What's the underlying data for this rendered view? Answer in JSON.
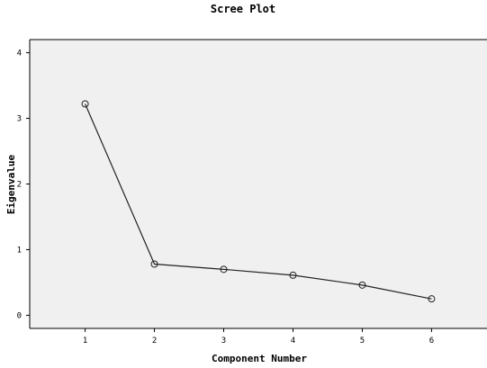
{
  "chart_data": {
    "type": "line",
    "title": "Scree Plot",
    "xlabel": "Component Number",
    "ylabel": "Eigenvalue",
    "x": [
      1,
      2,
      3,
      4,
      5,
      6
    ],
    "series": [
      {
        "values": [
          3.22,
          0.78,
          0.7,
          0.61,
          0.46,
          0.25
        ]
      }
    ],
    "xlim": [
      0.2,
      6.8
    ],
    "ylim": [
      -0.2,
      4.2
    ],
    "x_ticks": [
      1,
      2,
      3,
      4,
      5,
      6
    ],
    "y_ticks": [
      0,
      1,
      2,
      3,
      4
    ],
    "grid": false,
    "marker": "open-circle",
    "colors": {
      "plot_background": "#f0f0f0",
      "line": "#222222",
      "frame": "#000000"
    }
  }
}
